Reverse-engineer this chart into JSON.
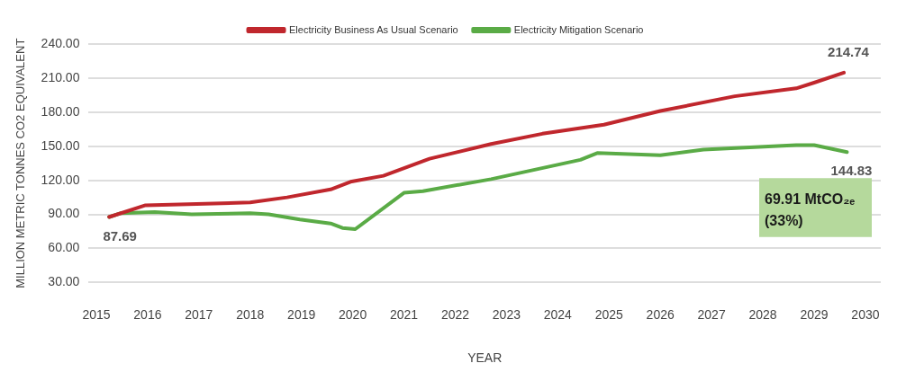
{
  "chart_data": {
    "type": "line",
    "xlabel": "YEAR",
    "ylabel": "MILLION METRIC TONNES CO2 EQUIVALENT",
    "xlim": [
      2014.85,
      2030.3
    ],
    "xticks": [
      2015,
      2016,
      2017,
      2018,
      2019,
      2020,
      2021,
      2022,
      2023,
      2024,
      2025,
      2026,
      2027,
      2028,
      2029,
      2030
    ],
    "ylim": [
      30,
      240
    ],
    "yticks": [
      {
        "value": 30,
        "label": "30.00"
      },
      {
        "value": 60,
        "label": "60.00"
      },
      {
        "value": 90,
        "label": "90.00"
      },
      {
        "value": 120,
        "label": "120.00"
      },
      {
        "value": 150,
        "label": "150.00"
      },
      {
        "value": 180,
        "label": "180.00"
      },
      {
        "value": 210,
        "label": "210.00"
      },
      {
        "value": 240,
        "label": "240.00"
      }
    ],
    "grid": "y",
    "legend": "top",
    "marker": "none",
    "line_style": "solid",
    "series": [
      {
        "name": "Electricity Business As Usual Scenario",
        "color": "#c0272d",
        "x": [
          2015.25,
          2015.96,
          2018.0,
          2018.72,
          2019.57,
          2019.98,
          2020.6,
          2021.5,
          2022.7,
          2023.7,
          2024.9,
          2026.0,
          2027.45,
          2028.65,
          2029.0,
          2029.58
        ],
        "values": [
          87.69,
          98,
          100.5,
          105,
          112,
          119,
          124,
          139,
          152,
          161,
          169,
          181,
          194,
          201,
          206,
          214.74
        ]
      },
      {
        "name": "Electricity Mitigation Scenario",
        "color": "#5aab46",
        "x": [
          2015.25,
          2015.47,
          2016.14,
          2016.86,
          2018.0,
          2018.36,
          2018.97,
          2019.57,
          2019.8,
          2020.05,
          2021.0,
          2021.37,
          2022.7,
          2024.44,
          2024.77,
          2026.0,
          2026.84,
          2028.65,
          2029.0,
          2029.64
        ],
        "values": [
          87.69,
          91,
          92,
          90,
          91,
          90,
          85.5,
          82,
          78,
          77,
          109,
          110.5,
          121,
          138,
          144,
          142,
          147,
          151,
          151,
          144.83
        ]
      }
    ],
    "annotations": [
      {
        "text": "87.69",
        "x": 2015.25,
        "y": 87.69
      },
      {
        "text": "214.74",
        "x": 2029.58,
        "y": 214.74
      },
      {
        "text": "144.83",
        "x": 2029.64,
        "y": 144.83
      },
      "69.91 MtCO₂ₑ (33%)"
    ]
  }
}
